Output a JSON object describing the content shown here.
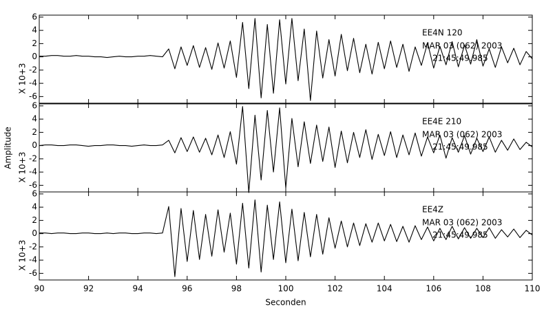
{
  "ylabel": "Amplitude",
  "xlabel": "Seconden",
  "chart_data": [
    {
      "type": "line",
      "station": "EE4N  120",
      "date": "MAR 03 (062) 2003",
      "time": "21:45:49.985",
      "ylabel": "X 10+3",
      "color": "#000000",
      "xlim": [
        90,
        110
      ],
      "ylim": [
        -7,
        6.3
      ],
      "yticks": [
        -6,
        -4,
        -2,
        0,
        2,
        4,
        6
      ],
      "x": [
        90,
        90.25,
        90.5,
        90.75,
        91,
        91.25,
        91.5,
        91.75,
        92,
        92.25,
        92.5,
        92.75,
        93,
        93.25,
        93.5,
        93.75,
        94,
        94.25,
        94.5,
        94.75,
        95,
        95.25,
        95.5,
        95.75,
        96,
        96.25,
        96.5,
        96.75,
        97,
        97.25,
        97.5,
        97.75,
        98,
        98.25,
        98.5,
        98.75,
        99,
        99.25,
        99.5,
        99.75,
        100,
        100.25,
        100.5,
        100.75,
        101,
        101.25,
        101.5,
        101.75,
        102,
        102.25,
        102.5,
        102.75,
        103,
        103.25,
        103.5,
        103.75,
        104,
        104.25,
        104.5,
        104.75,
        105,
        105.25,
        105.5,
        105.75,
        106,
        106.25,
        106.5,
        106.75,
        107,
        107.25,
        107.5,
        107.75,
        108,
        108.25,
        108.5,
        108.75,
        109,
        109.25,
        109.5,
        109.75,
        110
      ],
      "values": [
        0.1,
        0.1,
        0.2,
        0.2,
        0.1,
        0.1,
        0.2,
        0.1,
        0.1,
        0.0,
        0.0,
        -0.1,
        0,
        0.1,
        0,
        0,
        0.1,
        0.1,
        0.2,
        0.1,
        0,
        1.2,
        -1.8,
        1.5,
        -1.3,
        1.7,
        -1.6,
        1.4,
        -1.9,
        2.1,
        -1.7,
        2.4,
        -3.1,
        5.2,
        -4.8,
        5.8,
        -6.2,
        4.9,
        -5.5,
        5.6,
        -4.1,
        5.8,
        -3.6,
        4.2,
        -6.6,
        3.9,
        -3.2,
        2.6,
        -2.9,
        3.4,
        -2.1,
        2.8,
        -2.4,
        1.9,
        -2.6,
        2.2,
        -1.8,
        2.4,
        -1.6,
        1.9,
        -2.2,
        1.5,
        -1.3,
        2.1,
        -1.7,
        1.6,
        -1.2,
        2.3,
        -1.5,
        1.8,
        -1.1,
        2.6,
        -1.4,
        1.2,
        -1.6,
        1.5,
        -0.9,
        1.3,
        -1.2,
        0.8,
        -0.3
      ]
    },
    {
      "type": "line",
      "station": "EE4E  210",
      "date": "MAR 03 (062) 2003",
      "time": "21:45:49.985",
      "ylabel": "X 10+3",
      "color": "#000000",
      "xlim": [
        90,
        110
      ],
      "ylim": [
        -7,
        6.3
      ],
      "yticks": [
        -6,
        -4,
        -2,
        0,
        2,
        4,
        6
      ],
      "x": [
        90,
        90.25,
        90.5,
        90.75,
        91,
        91.25,
        91.5,
        91.75,
        92,
        92.25,
        92.5,
        92.75,
        93,
        93.25,
        93.5,
        93.75,
        94,
        94.25,
        94.5,
        94.75,
        95,
        95.25,
        95.5,
        95.75,
        96,
        96.25,
        96.5,
        96.75,
        97,
        97.25,
        97.5,
        97.75,
        98,
        98.25,
        98.5,
        98.75,
        99,
        99.25,
        99.5,
        99.75,
        100,
        100.25,
        100.5,
        100.75,
        101,
        101.25,
        101.5,
        101.75,
        102,
        102.25,
        102.5,
        102.75,
        103,
        103.25,
        103.5,
        103.75,
        104,
        104.25,
        104.5,
        104.75,
        105,
        105.25,
        105.5,
        105.75,
        106,
        106.25,
        106.5,
        106.75,
        107,
        107.25,
        107.5,
        107.75,
        108,
        108.25,
        108.5,
        108.75,
        109,
        109.25,
        109.5,
        109.75,
        110
      ],
      "values": [
        0.0,
        0.1,
        0.1,
        0.0,
        0.0,
        0.1,
        0.1,
        0.0,
        -0.1,
        0.0,
        0.0,
        0.1,
        0.1,
        0.0,
        0.0,
        -0.1,
        0.0,
        0.1,
        0.0,
        0.0,
        0.1,
        0.8,
        -1.1,
        1.2,
        -0.9,
        1.3,
        -1.0,
        1.1,
        -1.4,
        1.6,
        -1.8,
        2.1,
        -2.8,
        5.9,
        -7.1,
        4.6,
        -5.2,
        5.3,
        -4.0,
        5.7,
        -6.4,
        4.1,
        -3.2,
        3.6,
        -2.7,
        3.1,
        -2.4,
        2.8,
        -3.3,
        2.2,
        -2.6,
        2.0,
        -1.8,
        2.4,
        -2.1,
        1.7,
        -1.5,
        2.1,
        -1.8,
        1.6,
        -1.4,
        1.9,
        -1.6,
        1.3,
        -1.1,
        1.6,
        -1.9,
        1.2,
        -1.0,
        1.5,
        -1.3,
        1.1,
        -0.9,
        1.3,
        -1.0,
        0.8,
        -0.7,
        1.0,
        -0.6,
        0.5,
        -0.2
      ]
    },
    {
      "type": "line",
      "station": "EE4Z",
      "date": "MAR 03 (062) 2003",
      "time": "21:45:49.985",
      "ylabel": "X 10+3",
      "color": "#000000",
      "xlim": [
        90,
        110
      ],
      "ylim": [
        -7,
        6.3
      ],
      "yticks": [
        -6,
        -4,
        -2,
        0,
        2,
        4,
        6
      ],
      "xticks": [
        90,
        92,
        94,
        96,
        98,
        100,
        102,
        104,
        106,
        108,
        110
      ],
      "x": [
        90,
        90.25,
        90.5,
        90.75,
        91,
        91.25,
        91.5,
        91.75,
        92,
        92.25,
        92.5,
        92.75,
        93,
        93.25,
        93.5,
        93.75,
        94,
        94.25,
        94.5,
        94.75,
        95,
        95.25,
        95.5,
        95.75,
        96,
        96.25,
        96.5,
        96.75,
        97,
        97.25,
        97.5,
        97.75,
        98,
        98.25,
        98.5,
        98.75,
        99,
        99.25,
        99.5,
        99.75,
        100,
        100.25,
        100.5,
        100.75,
        101,
        101.25,
        101.5,
        101.75,
        102,
        102.25,
        102.5,
        102.75,
        103,
        103.25,
        103.5,
        103.75,
        104,
        104.25,
        104.5,
        104.75,
        105,
        105.25,
        105.5,
        105.75,
        106,
        106.25,
        106.5,
        106.75,
        107,
        107.25,
        107.5,
        107.75,
        108,
        108.25,
        108.5,
        108.75,
        109,
        109.25,
        109.5,
        109.75,
        110
      ],
      "values": [
        0.1,
        0.1,
        0.0,
        0.1,
        0.1,
        0.0,
        0.0,
        0.1,
        0.1,
        0.0,
        0.0,
        0.1,
        0.0,
        0.1,
        0.1,
        0.0,
        0.0,
        0.1,
        0.1,
        0.0,
        0.1,
        4.1,
        -6.5,
        3.8,
        -4.2,
        3.5,
        -3.9,
        2.9,
        -3.4,
        3.6,
        -2.8,
        3.1,
        -4.6,
        4.6,
        -5.2,
        5.1,
        -5.8,
        4.3,
        -3.9,
        4.8,
        -4.4,
        3.7,
        -4.1,
        3.2,
        -3.5,
        2.9,
        -3.1,
        2.4,
        -2.2,
        1.9,
        -2.0,
        1.6,
        -1.8,
        1.5,
        -1.3,
        1.6,
        -1.1,
        1.4,
        -1.2,
        1.1,
        -1.3,
        1.2,
        -0.9,
        1.0,
        -1.1,
        0.8,
        -0.9,
        1.1,
        -0.8,
        0.9,
        -0.7,
        0.8,
        -0.6,
        0.9,
        -0.7,
        0.6,
        -0.5,
        0.7,
        -0.6,
        0.5,
        -0.2
      ]
    }
  ]
}
